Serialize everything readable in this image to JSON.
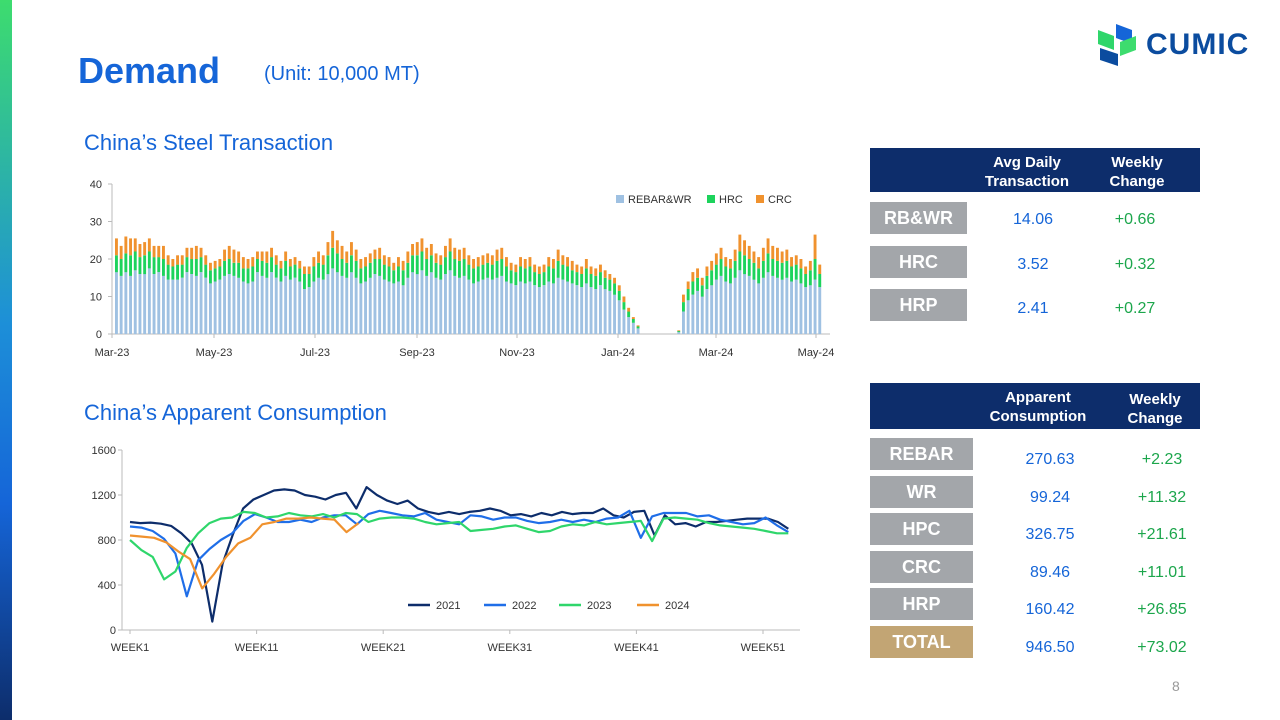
{
  "slide": {
    "title": "Demand",
    "unit": "(Unit: 10,000 MT)",
    "page_number": "8",
    "brand": "CUMIC"
  },
  "colors": {
    "accent": "#1565d8",
    "header_navy": "#0d2d6b",
    "label_gray": "#a3a6aa",
    "total_tan": "#c2a574",
    "positive": "#1ca64c"
  },
  "transaction_table": {
    "headers": [
      "Avg Daily Transaction",
      "Weekly Change"
    ],
    "rows": [
      {
        "label": "RB&WR",
        "value": "14.06",
        "change": "+0.66"
      },
      {
        "label": "HRC",
        "value": "3.52",
        "change": "+0.32"
      },
      {
        "label": "HRP",
        "value": "2.41",
        "change": "+0.27"
      }
    ]
  },
  "consumption_table": {
    "headers": [
      "Apparent Consumption",
      "Weekly Change"
    ],
    "rows": [
      {
        "label": "REBAR",
        "value": "270.63",
        "change": "+2.23"
      },
      {
        "label": "WR",
        "value": "99.24",
        "change": "+11.32"
      },
      {
        "label": "HPC",
        "value": "326.75",
        "change": "+21.61"
      },
      {
        "label": "CRC",
        "value": "89.46",
        "change": "+11.01"
      },
      {
        "label": "HRP",
        "value": "160.42",
        "change": "+26.85"
      },
      {
        "label": "TOTAL",
        "value": "946.50",
        "change": "+73.02"
      }
    ]
  },
  "chart_data": [
    {
      "type": "bar",
      "stacked": true,
      "title": "China’s Steel Transaction",
      "xlabel": "",
      "ylabel": "",
      "ylim": [
        0,
        40
      ],
      "yticks": [
        0,
        10,
        20,
        30,
        40
      ],
      "xticks": [
        "Mar-23",
        "May-23",
        "Jul-23",
        "Sep-23",
        "Nov-23",
        "Jan-24",
        "Mar-24",
        "May-24"
      ],
      "legend_position": "top-right",
      "grid": false,
      "series_names": [
        "REBAR&WR",
        "HRC",
        "CRC"
      ],
      "series_colors": [
        "#9fc1e2",
        "#1dd35c",
        "#f0922e"
      ],
      "bars": [
        [
          16.5,
          4.5,
          4.5
        ],
        [
          15.5,
          4.5,
          3.5
        ],
        [
          16.5,
          5.0,
          4.5
        ],
        [
          15.5,
          5.5,
          4.5
        ],
        [
          17.0,
          5.0,
          3.5
        ],
        [
          16.0,
          4.5,
          3.5
        ],
        [
          16.0,
          5.0,
          3.5
        ],
        [
          17.5,
          4.5,
          3.5
        ],
        [
          16.0,
          4.5,
          3.0
        ],
        [
          16.5,
          4.0,
          3.0
        ],
        [
          15.5,
          4.5,
          3.5
        ],
        [
          14.5,
          4.0,
          2.5
        ],
        [
          14.5,
          3.5,
          2.0
        ],
        [
          14.5,
          4.0,
          2.5
        ],
        [
          15.0,
          3.5,
          2.5
        ],
        [
          16.5,
          4.0,
          2.5
        ],
        [
          16.0,
          4.0,
          3.0
        ],
        [
          15.5,
          4.5,
          3.5
        ],
        [
          16.5,
          4.0,
          2.5
        ],
        [
          15.0,
          3.5,
          2.5
        ],
        [
          13.5,
          3.5,
          2.0
        ],
        [
          14.0,
          3.5,
          2.0
        ],
        [
          14.5,
          3.5,
          2.0
        ],
        [
          15.5,
          4.0,
          3.0
        ],
        [
          16.0,
          4.0,
          3.5
        ],
        [
          15.5,
          3.5,
          3.5
        ],
        [
          15.0,
          4.0,
          3.0
        ],
        [
          14.0,
          3.5,
          3.0
        ],
        [
          13.5,
          4.0,
          2.5
        ],
        [
          14.0,
          4.0,
          2.5
        ],
        [
          16.5,
          3.5,
          2.0
        ],
        [
          15.5,
          4.0,
          2.5
        ],
        [
          15.0,
          4.0,
          3.0
        ],
        [
          16.5,
          4.0,
          2.5
        ],
        [
          15.0,
          3.5,
          2.5
        ],
        [
          14.0,
          3.5,
          2.0
        ],
        [
          15.5,
          4.0,
          2.5
        ],
        [
          14.5,
          3.5,
          2.0
        ],
        [
          15.0,
          3.5,
          2.0
        ],
        [
          14.0,
          3.5,
          2.0
        ],
        [
          12.0,
          4.0,
          2.0
        ],
        [
          12.5,
          3.5,
          2.0
        ],
        [
          14.0,
          4.0,
          2.5
        ],
        [
          15.0,
          4.0,
          3.0
        ],
        [
          14.5,
          4.0,
          2.5
        ],
        [
          16.0,
          5.0,
          3.5
        ],
        [
          17.5,
          5.5,
          4.5
        ],
        [
          16.5,
          5.0,
          3.5
        ],
        [
          15.5,
          4.5,
          3.5
        ],
        [
          15.0,
          4.0,
          3.0
        ],
        [
          16.5,
          4.5,
          3.5
        ],
        [
          15.0,
          4.5,
          3.0
        ],
        [
          13.5,
          4.0,
          2.5
        ],
        [
          14.0,
          4.0,
          2.5
        ],
        [
          15.0,
          4.0,
          2.5
        ],
        [
          16.0,
          4.0,
          2.5
        ],
        [
          15.5,
          4.5,
          3.0
        ],
        [
          14.5,
          4.0,
          2.5
        ],
        [
          14.0,
          4.0,
          2.5
        ],
        [
          13.5,
          3.5,
          2.0
        ],
        [
          14.0,
          4.0,
          2.5
        ],
        [
          13.0,
          4.0,
          2.5
        ],
        [
          15.0,
          4.0,
          3.0
        ],
        [
          16.5,
          4.5,
          3.0
        ],
        [
          16.0,
          5.0,
          3.5
        ],
        [
          17.0,
          5.0,
          3.5
        ],
        [
          15.5,
          4.5,
          3.0
        ],
        [
          16.5,
          4.5,
          3.0
        ],
        [
          15.0,
          4.0,
          2.5
        ],
        [
          14.5,
          4.0,
          2.5
        ],
        [
          16.0,
          4.5,
          3.0
        ],
        [
          17.0,
          5.0,
          3.5
        ],
        [
          15.5,
          4.5,
          3.0
        ],
        [
          15.0,
          4.5,
          3.0
        ],
        [
          15.5,
          4.5,
          3.0
        ],
        [
          14.5,
          4.0,
          2.5
        ],
        [
          13.5,
          4.0,
          2.5
        ],
        [
          14.0,
          4.0,
          2.5
        ],
        [
          14.5,
          4.0,
          2.5
        ],
        [
          15.0,
          4.0,
          2.5
        ],
        [
          14.5,
          4.0,
          2.5
        ],
        [
          15.0,
          4.5,
          3.0
        ],
        [
          15.5,
          4.5,
          3.0
        ],
        [
          14.0,
          4.0,
          2.5
        ],
        [
          13.5,
          3.5,
          2.0
        ],
        [
          13.0,
          3.5,
          2.0
        ],
        [
          14.0,
          4.0,
          2.5
        ],
        [
          13.5,
          4.0,
          2.5
        ],
        [
          14.0,
          4.0,
          2.5
        ],
        [
          13.0,
          3.5,
          2.0
        ],
        [
          12.5,
          3.5,
          2.0
        ],
        [
          13.0,
          3.5,
          2.0
        ],
        [
          14.0,
          4.0,
          2.5
        ],
        [
          13.5,
          4.0,
          2.5
        ],
        [
          15.0,
          4.5,
          3.0
        ],
        [
          14.5,
          4.0,
          2.5
        ],
        [
          14.0,
          4.0,
          2.5
        ],
        [
          13.5,
          3.5,
          2.5
        ],
        [
          13.0,
          3.5,
          2.0
        ],
        [
          12.5,
          3.5,
          2.0
        ],
        [
          13.5,
          4.0,
          2.5
        ],
        [
          12.5,
          3.5,
          2.0
        ],
        [
          12.0,
          3.5,
          2.0
        ],
        [
          13.0,
          3.5,
          2.0
        ],
        [
          12.0,
          3.0,
          2.0
        ],
        [
          11.5,
          3.0,
          1.5
        ],
        [
          10.5,
          3.0,
          1.5
        ],
        [
          9.0,
          2.5,
          1.5
        ],
        [
          6.5,
          2.0,
          1.5
        ],
        [
          4.5,
          1.5,
          1.0
        ],
        [
          3.0,
          1.0,
          0.5
        ],
        [
          1.5,
          0.5,
          0.3
        ],
        [
          0.5,
          0.3,
          0.2
        ],
        [
          6.0,
          2.5,
          2.0
        ],
        [
          9.0,
          3.0,
          2.0
        ],
        [
          10.5,
          3.5,
          2.5
        ],
        [
          11.5,
          3.5,
          2.5
        ],
        [
          10.0,
          3.0,
          2.0
        ],
        [
          12.0,
          3.5,
          2.5
        ],
        [
          13.0,
          4.0,
          2.5
        ],
        [
          14.5,
          4.0,
          3.0
        ],
        [
          15.5,
          4.5,
          3.0
        ],
        [
          14.0,
          4.0,
          2.5
        ],
        [
          13.5,
          4.0,
          2.5
        ],
        [
          15.0,
          4.5,
          3.0
        ],
        [
          17.0,
          5.0,
          4.5
        ],
        [
          16.0,
          5.0,
          4.0
        ],
        [
          15.5,
          4.5,
          3.5
        ],
        [
          14.5,
          4.5,
          3.0
        ],
        [
          13.5,
          4.0,
          3.0
        ],
        [
          15.0,
          4.5,
          3.5
        ],
        [
          16.5,
          5.0,
          4.0
        ],
        [
          15.5,
          4.5,
          3.5
        ],
        [
          15.0,
          4.5,
          3.5
        ],
        [
          14.5,
          4.5,
          3.0
        ],
        [
          15.0,
          4.5,
          3.0
        ],
        [
          14.0,
          4.0,
          2.5
        ],
        [
          14.5,
          4.0,
          2.5
        ],
        [
          13.5,
          4.0,
          2.5
        ],
        [
          12.5,
          3.5,
          2.0
        ],
        [
          13.0,
          4.0,
          2.5
        ],
        [
          14.5,
          5.5,
          6.5
        ],
        [
          12.5,
          3.5,
          2.5
        ]
      ]
    },
    {
      "type": "line",
      "title": "China’s Apparent Consumption",
      "xlabel": "",
      "ylabel": "",
      "ylim": [
        0,
        1600
      ],
      "yticks": [
        0,
        400,
        800,
        1200,
        1600
      ],
      "xlim": [
        1,
        53
      ],
      "xticks": [
        "WEEK1",
        "WEEK11",
        "WEEK21",
        "WEEK31",
        "WEEK41",
        "WEEK51"
      ],
      "xtick_values": [
        1,
        11,
        21,
        31,
        41,
        51
      ],
      "legend_position": "bottom-center",
      "grid": false,
      "series": [
        {
          "name": "2021",
          "color": "#0d2d6b",
          "values": [
            960,
            950,
            955,
            945,
            925,
            860,
            770,
            580,
            75,
            590,
            850,
            1080,
            1160,
            1200,
            1240,
            1250,
            1240,
            1200,
            1185,
            1160,
            1200,
            1220,
            1080,
            1270,
            1200,
            1150,
            1120,
            1150,
            1080,
            1050,
            1030,
            1050,
            1030,
            1050,
            1060,
            1080,
            1060,
            1020,
            1030,
            1010,
            1040,
            1020,
            1050,
            1030,
            1040,
            1040,
            1080,
            1020,
            1000,
            1050,
            1060,
            840,
            1020,
            940,
            950,
            920,
            960,
            960,
            970,
            980,
            990,
            990,
            990,
            960,
            900
          ]
        },
        {
          "name": "2022",
          "color": "#1f6ee8",
          "values": [
            920,
            910,
            880,
            810,
            680,
            300,
            620,
            720,
            800,
            860,
            970,
            1030,
            1000,
            960,
            960,
            980,
            960,
            1000,
            1020,
            1020,
            940,
            1030,
            1060,
            1040,
            1020,
            1010,
            1040,
            980,
            960,
            940,
            1020,
            1010,
            980,
            1000,
            1000,
            970,
            950,
            960,
            980,
            960,
            980,
            960,
            990,
            1000,
            1060,
            820,
            1010,
            1040,
            1040,
            1040,
            1010,
            1020,
            980,
            960,
            940,
            950,
            1000,
            930,
            870
          ]
        },
        {
          "name": "2023",
          "color": "#2fd66b",
          "values": [
            800,
            710,
            650,
            450,
            520,
            730,
            860,
            950,
            990,
            1000,
            1050,
            1040,
            1000,
            1010,
            1040,
            1020,
            1010,
            1030,
            1000,
            1040,
            1030,
            960,
            990,
            1000,
            1000,
            990,
            960,
            940,
            950,
            960,
            880,
            890,
            900,
            920,
            930,
            900,
            870,
            880,
            920,
            940,
            930,
            960,
            940,
            950,
            960,
            970,
            790,
            990,
            1000,
            990,
            980,
            950,
            930,
            920,
            910,
            900,
            880,
            860,
            860
          ]
        },
        {
          "name": "2024",
          "color": "#f0922e",
          "values": [
            840,
            830,
            820,
            780,
            700,
            630,
            370,
            500,
            650,
            770,
            820,
            940,
            960,
            990,
            990,
            1000,
            990,
            980,
            870,
            950
          ]
        }
      ]
    }
  ]
}
